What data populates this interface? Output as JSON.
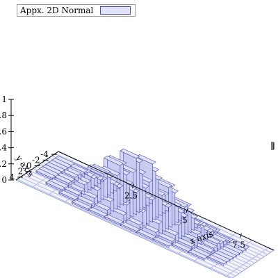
{
  "legend": {
    "label": "Appx. 2D Normal",
    "swatch_color": "#e0e3fb",
    "swatch_border": "#4a4aa8"
  },
  "chart_data": {
    "type": "3d-histogram",
    "title": "",
    "xlabel": "x axis",
    "ylabel": "y axis",
    "zlabel": "",
    "xlim": [
      -1.0,
      9.0
    ],
    "ylim": [
      -5.0,
      5.0
    ],
    "zlim": [
      0,
      1
    ],
    "x_ticks": [
      "2.5",
      "5",
      "7.5"
    ],
    "y_ticks": [
      "-4",
      "-2",
      "0",
      "2",
      "4"
    ],
    "z_ticks": [
      "0",
      ".2",
      ".4",
      ".6",
      ".8",
      "1"
    ],
    "bin_width": 0.75,
    "x_bin_starts": [
      -0.75,
      0.0,
      0.75,
      1.5,
      2.25,
      3.0,
      3.75,
      4.5,
      5.25,
      6.0,
      6.75,
      7.5
    ],
    "y_bin_starts": [
      -3.75,
      -3.0,
      -2.25,
      -1.5,
      -0.75,
      0.0,
      0.75,
      1.5,
      2.25,
      3.0,
      3.75
    ],
    "heights": [
      [
        0.02,
        0.02,
        0.02,
        0.02,
        0.02,
        0.02,
        0.02,
        0.0,
        0.0,
        0.0,
        0.0
      ],
      [
        0.02,
        0.05,
        0.05,
        0.07,
        0.07,
        0.05,
        0.05,
        0.02,
        0.02,
        0.0,
        0.0
      ],
      [
        0.02,
        0.05,
        0.1,
        0.12,
        0.17,
        0.12,
        0.12,
        0.07,
        0.05,
        0.02,
        0.0
      ],
      [
        0.02,
        0.07,
        0.12,
        0.22,
        0.3,
        0.32,
        0.25,
        0.17,
        0.1,
        0.05,
        0.02
      ],
      [
        0.05,
        0.1,
        0.2,
        0.35,
        0.5,
        0.52,
        0.42,
        0.27,
        0.15,
        0.07,
        0.02
      ],
      [
        0.05,
        0.1,
        0.25,
        0.45,
        0.62,
        0.7,
        0.55,
        0.35,
        0.2,
        0.1,
        0.02
      ],
      [
        0.05,
        0.1,
        0.25,
        0.47,
        0.6,
        0.72,
        0.52,
        0.35,
        0.2,
        0.07,
        0.02
      ],
      [
        0.02,
        0.1,
        0.2,
        0.4,
        0.5,
        0.52,
        0.45,
        0.27,
        0.15,
        0.07,
        0.02
      ],
      [
        0.02,
        0.05,
        0.15,
        0.25,
        0.35,
        0.37,
        0.3,
        0.2,
        0.1,
        0.05,
        0.02
      ],
      [
        0.02,
        0.05,
        0.07,
        0.12,
        0.2,
        0.2,
        0.15,
        0.1,
        0.05,
        0.02,
        0.0
      ],
      [
        0.0,
        0.02,
        0.05,
        0.07,
        0.07,
        0.1,
        0.07,
        0.05,
        0.02,
        0.02,
        0.0
      ],
      [
        0.0,
        0.02,
        0.02,
        0.02,
        0.02,
        0.02,
        0.02,
        0.02,
        0.02,
        0.0,
        0.0
      ]
    ],
    "bar_color": "#e0e3fb",
    "bar_edge_color": "#4a4aa8",
    "grid": true
  }
}
